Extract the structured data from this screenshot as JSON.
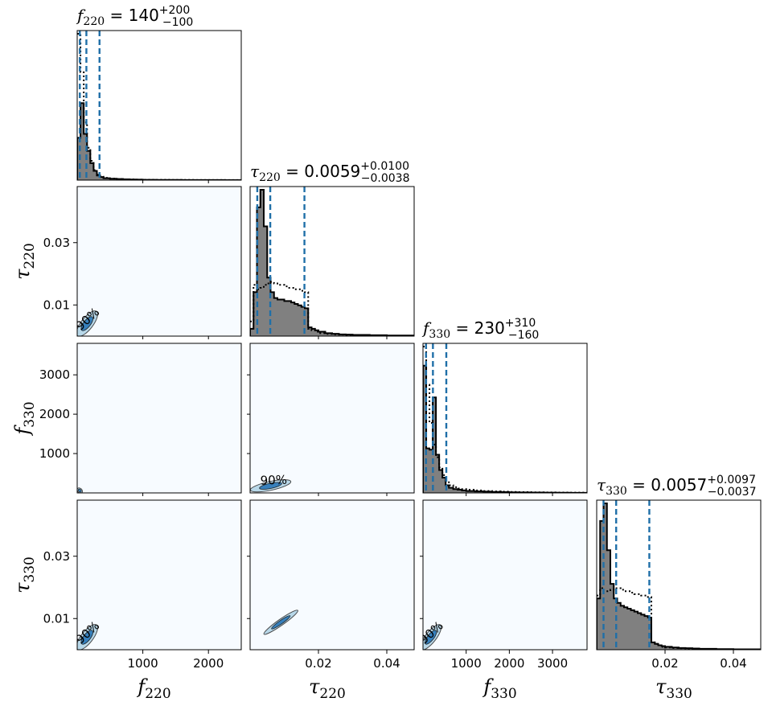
{
  "chart_data": {
    "type": "corner",
    "parameters": [
      {
        "symbol": "f",
        "subscript": "220",
        "range": [
          0,
          2500
        ],
        "ticks": [
          1000,
          2000
        ],
        "tick_labels": [
          "1000",
          "2000"
        ],
        "title_value": "140",
        "title_plus": "+200",
        "title_minus": "−100",
        "quantiles": [
          40,
          140,
          340
        ],
        "hist": {
          "edges": [
            0,
            50,
            100,
            150,
            200,
            250,
            300,
            350,
            400,
            500,
            600,
            700,
            800,
            900,
            1000,
            1200,
            1400,
            1600,
            1800,
            2000,
            2250,
            2500
          ],
          "samples": [
            0.55,
            1.0,
            0.6,
            0.38,
            0.22,
            0.12,
            0.06,
            0.04,
            0.025,
            0.018,
            0.014,
            0.01,
            0.008,
            0.006,
            0.004,
            0.003,
            0.002,
            0.0015,
            0.001,
            0.0008,
            0.0005
          ],
          "prior": [
            1.9,
            1.4,
            0.75,
            0.42,
            0.25,
            0.13,
            0.07,
            0.045,
            0.03,
            0.02,
            0.015,
            0.011,
            0.009,
            0.007,
            0.005,
            0.004,
            0.003,
            0.002,
            0.0015,
            0.001,
            0.0007
          ],
          "ymax": 1.9
        }
      },
      {
        "symbol": "τ",
        "subscript": "220",
        "range": [
          0.0,
          0.048
        ],
        "ticks": [
          0.01,
          0.03
        ],
        "tick_labels": [
          "0.01",
          "0.03"
        ],
        "xticks": [
          0.02,
          0.04
        ],
        "xtick_labels": [
          "0.02",
          "0.04"
        ],
        "title_value": "0.0059",
        "title_plus": "+0.0100",
        "title_minus": "−0.0038",
        "quantiles": [
          0.0021,
          0.0059,
          0.0159
        ],
        "hist": {
          "edges": [
            0.0,
            0.001,
            0.002,
            0.003,
            0.004,
            0.005,
            0.006,
            0.007,
            0.008,
            0.009,
            0.01,
            0.011,
            0.012,
            0.013,
            0.014,
            0.015,
            0.016,
            0.017,
            0.018,
            0.019,
            0.02,
            0.022,
            0.024,
            0.026,
            0.028,
            0.03,
            0.035,
            0.04,
            0.048
          ],
          "samples": [
            0.05,
            0.3,
            0.88,
            1.0,
            0.75,
            0.4,
            0.3,
            0.26,
            0.25,
            0.25,
            0.24,
            0.24,
            0.23,
            0.22,
            0.21,
            0.2,
            0.19,
            0.06,
            0.05,
            0.04,
            0.03,
            0.02,
            0.016,
            0.012,
            0.01,
            0.008,
            0.006,
            0.004
          ],
          "prior": [
            0.1,
            0.35,
            0.32,
            0.33,
            0.35,
            0.36,
            0.37,
            0.36,
            0.35,
            0.35,
            0.34,
            0.33,
            0.33,
            0.32,
            0.32,
            0.31,
            0.3,
            0.05,
            0.04,
            0.03,
            0.02,
            0.015,
            0.012,
            0.01,
            0.008,
            0.006,
            0.004,
            0.003
          ],
          "ymax": 1.0
        }
      },
      {
        "symbol": "f",
        "subscript": "330",
        "range": [
          0,
          3800
        ],
        "ticks": [
          1000,
          2000,
          3000
        ],
        "tick_labels": [
          "1000",
          "2000",
          "3000"
        ],
        "title_value": "230",
        "title_plus": "+310",
        "title_minus": "−160",
        "quantiles": [
          70,
          230,
          540
        ],
        "hist": {
          "edges": [
            0,
            75,
            150,
            225,
            300,
            375,
            450,
            525,
            600,
            700,
            800,
            900,
            1000,
            1200,
            1400,
            1600,
            1800,
            2000,
            2200,
            2500,
            2800,
            3100,
            3400,
            3800
          ],
          "samples": [
            1.0,
            0.35,
            0.34,
            0.75,
            0.3,
            0.18,
            0.12,
            0.06,
            0.04,
            0.03,
            0.025,
            0.02,
            0.015,
            0.012,
            0.01,
            0.008,
            0.006,
            0.005,
            0.004,
            0.003,
            0.002,
            0.0015,
            0.001
          ],
          "prior": [
            1.15,
            0.85,
            0.55,
            0.38,
            0.28,
            0.2,
            0.14,
            0.09,
            0.06,
            0.045,
            0.035,
            0.03,
            0.025,
            0.02,
            0.015,
            0.012,
            0.01,
            0.008,
            0.006,
            0.005,
            0.004,
            0.003,
            0.002
          ],
          "ymax": 1.15
        }
      },
      {
        "symbol": "τ",
        "subscript": "330",
        "range": [
          0.0,
          0.048
        ],
        "ticks": [
          0.01,
          0.03
        ],
        "tick_labels": [
          "0.01",
          "0.03"
        ],
        "xticks": [
          0.02,
          0.04
        ],
        "xtick_labels": [
          "0.02",
          "0.04"
        ],
        "title_value": "0.0057",
        "title_plus": "+0.0097",
        "title_minus": "−0.0037",
        "quantiles": [
          0.002,
          0.0057,
          0.0154
        ],
        "hist": {
          "edges": [
            0.0,
            0.001,
            0.002,
            0.003,
            0.004,
            0.005,
            0.006,
            0.007,
            0.008,
            0.009,
            0.01,
            0.011,
            0.012,
            0.013,
            0.014,
            0.015,
            0.016,
            0.017,
            0.018,
            0.019,
            0.02,
            0.022,
            0.024,
            0.026,
            0.028,
            0.03,
            0.035,
            0.04,
            0.048
          ],
          "samples": [
            0.35,
            0.88,
            1.0,
            0.68,
            0.45,
            0.35,
            0.32,
            0.3,
            0.29,
            0.28,
            0.27,
            0.26,
            0.25,
            0.24,
            0.23,
            0.22,
            0.05,
            0.04,
            0.03,
            0.025,
            0.02,
            0.015,
            0.012,
            0.01,
            0.008,
            0.006,
            0.004,
            0.003
          ],
          "prior": [
            0.37,
            0.42,
            0.4,
            0.4,
            0.41,
            0.42,
            0.42,
            0.41,
            0.4,
            0.4,
            0.39,
            0.38,
            0.38,
            0.37,
            0.37,
            0.36,
            0.05,
            0.04,
            0.03,
            0.02,
            0.015,
            0.012,
            0.01,
            0.008,
            0.006,
            0.004,
            0.003,
            0.002
          ],
          "ymax": 1.0
        }
      }
    ],
    "contour_label": "90%",
    "contours": [
      {
        "row": 1,
        "col": 0,
        "center": [
          150,
          0.004
        ],
        "spread": [
          240,
          0.009
        ],
        "angle": -52,
        "label": true
      },
      {
        "row": 2,
        "col": 0,
        "center": [
          40,
          60
        ],
        "spread": [
          60,
          60
        ],
        "angle": -45,
        "label": false
      },
      {
        "row": 2,
        "col": 1,
        "center": [
          0.006,
          180
        ],
        "spread": [
          0.011,
          300
        ],
        "angle": -12,
        "label": true
      },
      {
        "row": 3,
        "col": 0,
        "center": [
          150,
          0.004
        ],
        "spread": [
          240,
          0.009
        ],
        "angle": -52,
        "label": true
      },
      {
        "row": 3,
        "col": 1,
        "center": [
          0.009,
          0.0088
        ],
        "spread": [
          0.011,
          0.0014
        ],
        "angle": -35,
        "label": false
      },
      {
        "row": 3,
        "col": 2,
        "center": [
          180,
          0.004
        ],
        "spread": [
          330,
          0.009
        ],
        "angle": -52,
        "label": true
      }
    ],
    "colors": {
      "hist_fill": "#808080",
      "hist_line": "#000000",
      "quantile_line": "#1f6fa8",
      "panel_bg": "#f7fbff",
      "contour_fill": "#9ecae1",
      "contour_core": "#2171b5"
    }
  }
}
